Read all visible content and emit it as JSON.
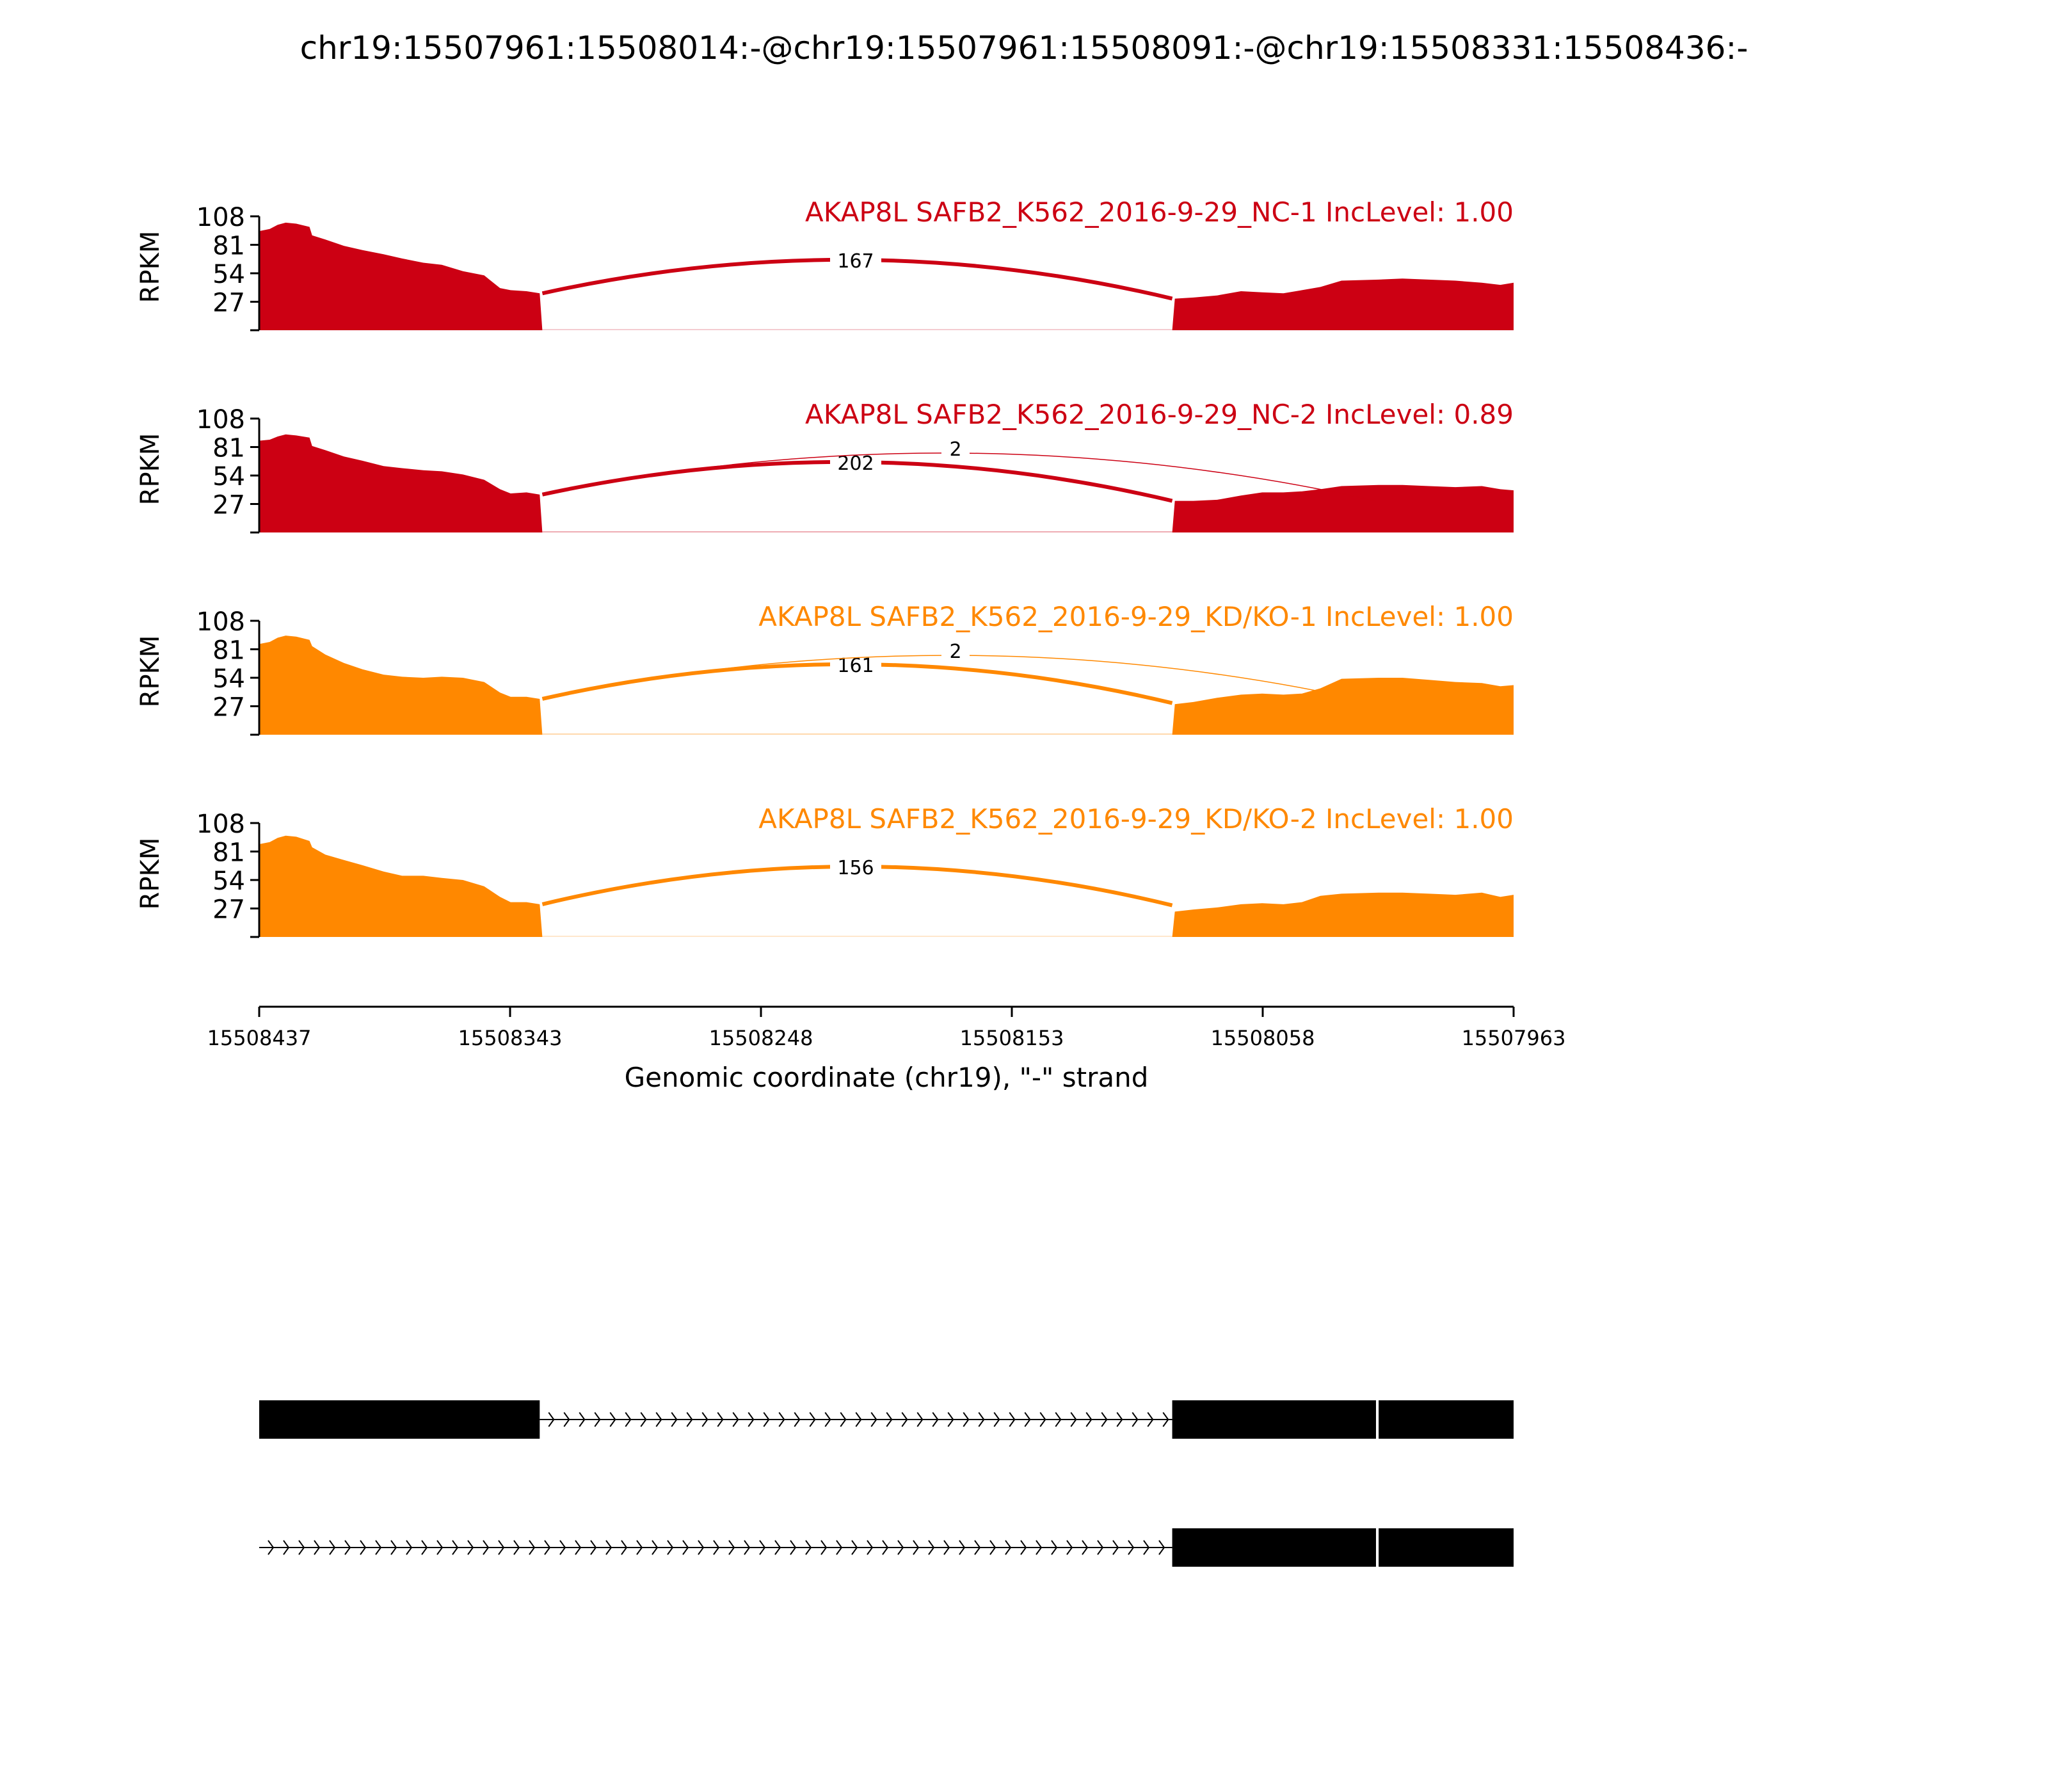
{
  "chart_data": {
    "type": "area",
    "title": "chr19:15507961:15508014:-@chr19:15507961:15508091:-@chr19:15508331:15508436:-",
    "xlabel": "Genomic coordinate (chr19), \"-\" strand",
    "ylabel": "RPKM",
    "xlim": [
      15508437,
      15507963
    ],
    "ylim": [
      0,
      108
    ],
    "x_ticks": [
      "15508437",
      "15508343",
      "15508248",
      "15508153",
      "15508058",
      "15507963"
    ],
    "y_ticks": [
      "27",
      "54",
      "81",
      "108"
    ],
    "colors": {
      "NC": "#cc0013",
      "KD": "#ff8800"
    },
    "samples": [
      {
        "label": "AKAP8L SAFB2_K562_2016-9-29_NC-1 IncLevel: 1.00",
        "color": "#cc0013",
        "junctions": [
          {
            "from": 15508330,
            "to": 15508092,
            "count": "167",
            "weight": 1.0
          }
        ],
        "coverage": [
          [
            15508437,
            94
          ],
          [
            15508433,
            96
          ],
          [
            15508430,
            100
          ],
          [
            15508427,
            102
          ],
          [
            15508423,
            101
          ],
          [
            15508418,
            98
          ],
          [
            15508417,
            90
          ],
          [
            15508412,
            86
          ],
          [
            15508405,
            80
          ],
          [
            15508398,
            76
          ],
          [
            15508390,
            72
          ],
          [
            15508383,
            68
          ],
          [
            15508375,
            64
          ],
          [
            15508368,
            62
          ],
          [
            15508360,
            56
          ],
          [
            15508352,
            52
          ],
          [
            15508346,
            40
          ],
          [
            15508342,
            38
          ],
          [
            15508336,
            37
          ],
          [
            15508331,
            35
          ],
          [
            15508330,
            0
          ],
          [
            15508092,
            0
          ],
          [
            15508091,
            30
          ],
          [
            15508084,
            31
          ],
          [
            15508075,
            33
          ],
          [
            15508066,
            37
          ],
          [
            15508058,
            36
          ],
          [
            15508050,
            35
          ],
          [
            15508043,
            38
          ],
          [
            15508036,
            41
          ],
          [
            15508028,
            47
          ],
          [
            15508014,
            48
          ],
          [
            15508005,
            49
          ],
          [
            15507995,
            48
          ],
          [
            15507985,
            47
          ],
          [
            15507975,
            45
          ],
          [
            15507968,
            43
          ],
          [
            15507963,
            45
          ]
        ]
      },
      {
        "label": "AKAP8L SAFB2_K562_2016-9-29_NC-2 IncLevel: 0.89",
        "color": "#cc0013",
        "junctions": [
          {
            "from": 15508330,
            "to": 15508092,
            "count": "202",
            "weight": 1.0
          },
          {
            "from": 15508330,
            "to": 15508015,
            "count": "2",
            "weight": 0.15
          }
        ],
        "coverage": [
          [
            15508437,
            87
          ],
          [
            15508433,
            88
          ],
          [
            15508430,
            91
          ],
          [
            15508427,
            93
          ],
          [
            15508423,
            92
          ],
          [
            15508418,
            90
          ],
          [
            15508417,
            82
          ],
          [
            15508412,
            78
          ],
          [
            15508405,
            72
          ],
          [
            15508398,
            68
          ],
          [
            15508390,
            63
          ],
          [
            15508383,
            61
          ],
          [
            15508375,
            59
          ],
          [
            15508368,
            58
          ],
          [
            15508360,
            55
          ],
          [
            15508352,
            50
          ],
          [
            15508346,
            41
          ],
          [
            15508342,
            37
          ],
          [
            15508336,
            38
          ],
          [
            15508331,
            36
          ],
          [
            15508330,
            0
          ],
          [
            15508092,
            0
          ],
          [
            15508091,
            30
          ],
          [
            15508084,
            30
          ],
          [
            15508075,
            31
          ],
          [
            15508066,
            35
          ],
          [
            15508058,
            38
          ],
          [
            15508050,
            38
          ],
          [
            15508043,
            39
          ],
          [
            15508036,
            41
          ],
          [
            15508028,
            44
          ],
          [
            15508014,
            45
          ],
          [
            15508005,
            45
          ],
          [
            15507995,
            44
          ],
          [
            15507985,
            43
          ],
          [
            15507975,
            44
          ],
          [
            15507968,
            41
          ],
          [
            15507963,
            40
          ]
        ]
      },
      {
        "label": "AKAP8L SAFB2_K562_2016-9-29_KD/KO-1 IncLevel: 1.00",
        "color": "#ff8800",
        "junctions": [
          {
            "from": 15508330,
            "to": 15508092,
            "count": "161",
            "weight": 1.0
          },
          {
            "from": 15508330,
            "to": 15508015,
            "count": "2",
            "weight": 0.15
          }
        ],
        "coverage": [
          [
            15508437,
            86
          ],
          [
            15508433,
            88
          ],
          [
            15508430,
            92
          ],
          [
            15508427,
            94
          ],
          [
            15508423,
            93
          ],
          [
            15508418,
            90
          ],
          [
            15508417,
            84
          ],
          [
            15508412,
            76
          ],
          [
            15508405,
            68
          ],
          [
            15508398,
            62
          ],
          [
            15508390,
            57
          ],
          [
            15508383,
            55
          ],
          [
            15508375,
            54
          ],
          [
            15508368,
            55
          ],
          [
            15508360,
            54
          ],
          [
            15508352,
            50
          ],
          [
            15508346,
            40
          ],
          [
            15508342,
            36
          ],
          [
            15508336,
            36
          ],
          [
            15508331,
            34
          ],
          [
            15508330,
            0
          ],
          [
            15508092,
            0
          ],
          [
            15508091,
            29
          ],
          [
            15508084,
            31
          ],
          [
            15508075,
            35
          ],
          [
            15508066,
            38
          ],
          [
            15508058,
            39
          ],
          [
            15508050,
            38
          ],
          [
            15508043,
            39
          ],
          [
            15508036,
            44
          ],
          [
            15508028,
            53
          ],
          [
            15508014,
            54
          ],
          [
            15508005,
            54
          ],
          [
            15507995,
            52
          ],
          [
            15507985,
            50
          ],
          [
            15507975,
            49
          ],
          [
            15507968,
            46
          ],
          [
            15507963,
            47
          ]
        ]
      },
      {
        "label": "AKAP8L SAFB2_K562_2016-9-29_KD/KO-2 IncLevel: 1.00",
        "color": "#ff8800",
        "junctions": [
          {
            "from": 15508330,
            "to": 15508092,
            "count": "156",
            "weight": 1.0
          }
        ],
        "coverage": [
          [
            15508437,
            88
          ],
          [
            15508433,
            90
          ],
          [
            15508430,
            94
          ],
          [
            15508427,
            96
          ],
          [
            15508423,
            95
          ],
          [
            15508418,
            91
          ],
          [
            15508417,
            85
          ],
          [
            15508412,
            78
          ],
          [
            15508405,
            73
          ],
          [
            15508398,
            68
          ],
          [
            15508390,
            62
          ],
          [
            15508383,
            58
          ],
          [
            15508375,
            58
          ],
          [
            15508368,
            56
          ],
          [
            15508360,
            54
          ],
          [
            15508352,
            48
          ],
          [
            15508346,
            38
          ],
          [
            15508342,
            33
          ],
          [
            15508336,
            33
          ],
          [
            15508331,
            31
          ],
          [
            15508330,
            0
          ],
          [
            15508092,
            0
          ],
          [
            15508091,
            24
          ],
          [
            15508084,
            26
          ],
          [
            15508075,
            28
          ],
          [
            15508066,
            31
          ],
          [
            15508058,
            32
          ],
          [
            15508050,
            31
          ],
          [
            15508043,
            33
          ],
          [
            15508036,
            39
          ],
          [
            15508028,
            41
          ],
          [
            15508014,
            42
          ],
          [
            15508005,
            42
          ],
          [
            15507995,
            41
          ],
          [
            15507985,
            40
          ],
          [
            15507975,
            42
          ],
          [
            15507968,
            38
          ],
          [
            15507963,
            40
          ]
        ]
      }
    ],
    "isoforms": [
      {
        "exons": [
          [
            15508437,
            15508331
          ],
          [
            15508092,
            15508015
          ],
          [
            15508014,
            15507963
          ]
        ],
        "intron": [
          15508331,
          15508092
        ]
      },
      {
        "exons": [
          [
            15508092,
            15508015
          ],
          [
            15508014,
            15507963
          ]
        ],
        "intron": [
          15508437,
          15508092
        ]
      }
    ]
  }
}
